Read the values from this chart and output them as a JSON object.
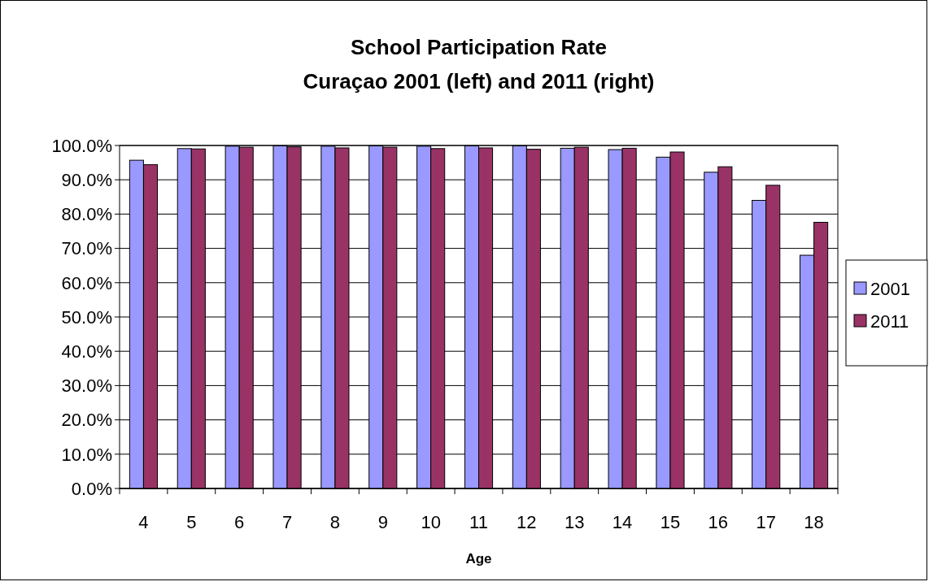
{
  "chart_data": {
    "type": "bar",
    "title": "School Participation Rate",
    "subtitle": "Curaçao 2001 (left) and 2011 (right)",
    "xlabel": "Age",
    "categories": [
      "4",
      "5",
      "6",
      "7",
      "8",
      "9",
      "10",
      "11",
      "12",
      "13",
      "14",
      "15",
      "16",
      "17",
      "18"
    ],
    "series": [
      {
        "name": "2001",
        "color": "#9999ff",
        "values": [
          95.7,
          99.1,
          99.8,
          99.9,
          99.8,
          99.9,
          99.8,
          99.9,
          99.9,
          99.2,
          98.8,
          96.6,
          92.2,
          84.0,
          68.0
        ]
      },
      {
        "name": "2011",
        "color": "#993366",
        "values": [
          94.4,
          99.0,
          99.5,
          99.6,
          99.3,
          99.5,
          99.1,
          99.3,
          98.9,
          99.5,
          99.2,
          98.1,
          93.8,
          88.4,
          77.6
        ]
      }
    ],
    "ylim": [
      0,
      100
    ],
    "yticks": [
      {
        "value": 0,
        "label": "0.0%"
      },
      {
        "value": 10,
        "label": "10.0%"
      },
      {
        "value": 20,
        "label": "20.0%"
      },
      {
        "value": 30,
        "label": "30.0%"
      },
      {
        "value": 40,
        "label": "40.0%"
      },
      {
        "value": 50,
        "label": "50.0%"
      },
      {
        "value": 60,
        "label": "60.0%"
      },
      {
        "value": 70,
        "label": "70.0%"
      },
      {
        "value": 80,
        "label": "80.0%"
      },
      {
        "value": 90,
        "label": "90.0%"
      },
      {
        "value": 100,
        "label": "100.0%"
      }
    ],
    "grid": "y",
    "legend": "right"
  }
}
